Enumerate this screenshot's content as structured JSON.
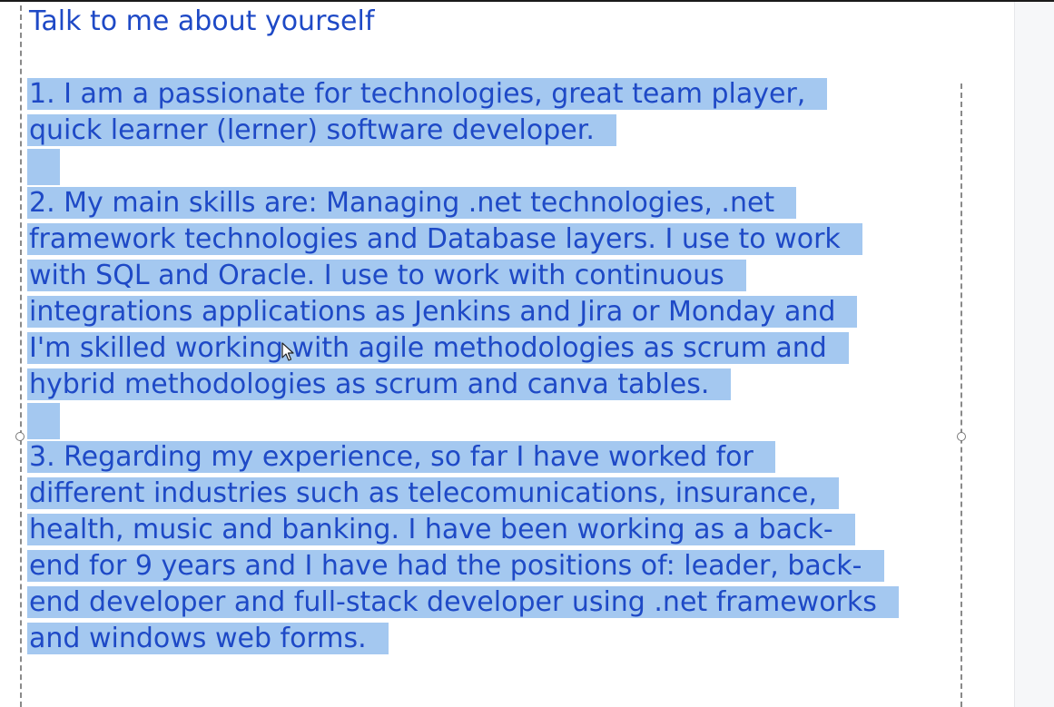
{
  "title": "Talk to me about yourself",
  "lines": [
    "1. I am a passionate for technologies, great team player,",
    "quick learner (lerner) software developer.",
    "",
    "2. My main skills are: Managing .net technologies, .net",
    "framework technologies and Database layers. I use to work",
    "with SQL and Oracle. I use to work with continuous",
    "integrations applications as Jenkins and Jira or Monday and",
    "I'm skilled working with agile methodologies as scrum and",
    "hybrid methodologies as scrum and canva tables.",
    "",
    "3. Regarding my experience, so far I have worked for",
    "different industries such as telecomunications, insurance,",
    "health, music and banking. I have been working as a back-",
    "end for 9 years and I have had the positions of: leader, back-",
    "end developer and full-stack developer using .net frameworks",
    "and windows web forms."
  ],
  "colors": {
    "text": "#1e49c6",
    "selection": "#a4c8f0"
  },
  "icons": [
    "mouse-cursor-icon",
    "resize-handle"
  ]
}
